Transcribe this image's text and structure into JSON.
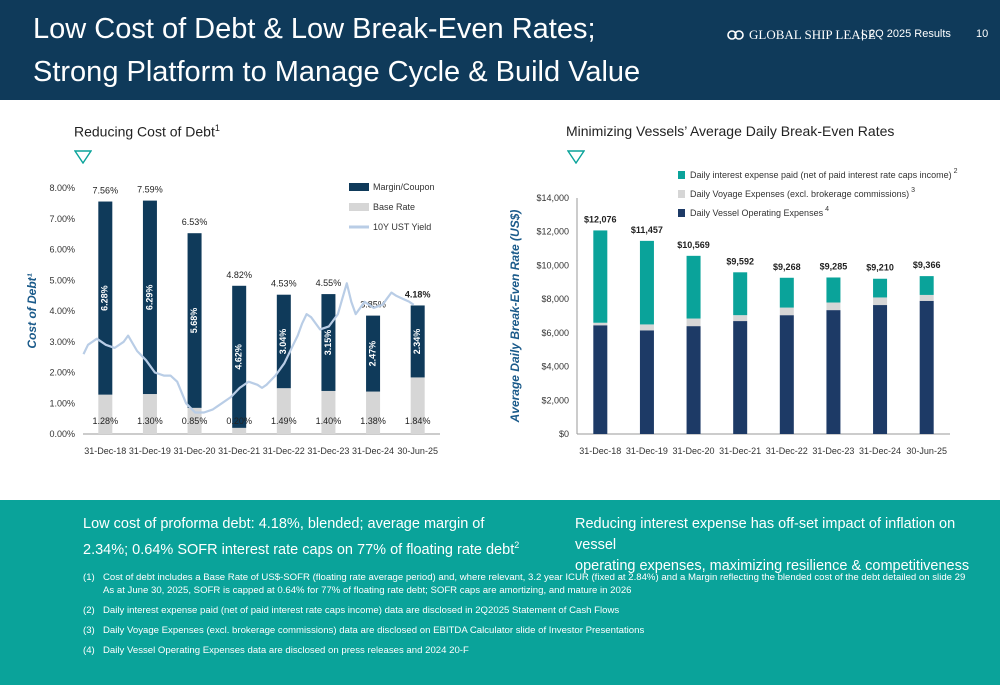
{
  "header": {
    "title_line1": "Low Cost of Debt & Low Break-Even Rates;",
    "title_line2": "Strong Platform to Manage Cycle & Build Value",
    "logo_text": "GLOBAL SHIP LEASE",
    "separator": "|",
    "results_label": "2Q 2025 Results",
    "page_number": "10",
    "colors": {
      "navy": "#0f3a5a",
      "teal": "#0aa39a"
    }
  },
  "left_panel": {
    "title": "Reducing Cost of Debt",
    "title_sup": "1",
    "marker_icon": "triangle-down-icon"
  },
  "right_panel": {
    "title": "Minimizing Vessels’ Average Daily Break-Even Rates",
    "marker_icon": "triangle-down-icon"
  },
  "chart_data": [
    {
      "type": "bar",
      "stacked": true,
      "ylabel": "Cost of Debt¹",
      "categories": [
        "31-Dec-18",
        "31-Dec-19",
        "31-Dec-20",
        "31-Dec-21",
        "31-Dec-22",
        "31-Dec-23",
        "31-Dec-24",
        "30-Jun-25"
      ],
      "ylim": [
        0,
        8
      ],
      "y_ticks": [
        "0.00%",
        "1.00%",
        "2.00%",
        "3.00%",
        "4.00%",
        "5.00%",
        "6.00%",
        "7.00%",
        "8.00%"
      ],
      "series": [
        {
          "name": "Base Rate",
          "color": "#d6d6d6",
          "values": [
            1.28,
            1.3,
            0.85,
            0.2,
            1.49,
            1.4,
            1.38,
            1.84
          ],
          "labels": [
            "1.28%",
            "1.30%",
            "0.85%",
            "0.20%",
            "1.49%",
            "1.40%",
            "1.38%",
            "1.84%"
          ]
        },
        {
          "name": "Margin/Coupon",
          "color": "#0f3a5a",
          "values": [
            6.28,
            6.29,
            5.68,
            4.62,
            3.04,
            3.15,
            2.47,
            2.34
          ],
          "labels": [
            "6.28%",
            "6.29%",
            "5.68%",
            "4.62%",
            "3.04%",
            "3.15%",
            "2.47%",
            "2.34%"
          ]
        }
      ],
      "totals": [
        7.56,
        7.59,
        6.53,
        4.82,
        4.53,
        4.55,
        3.85,
        4.18
      ],
      "total_labels": [
        "7.56%",
        "7.59%",
        "6.53%",
        "4.82%",
        "4.53%",
        "4.55%",
        "3.85%",
        "4.18%"
      ],
      "line": {
        "name": "10Y UST Yield",
        "color": "#b9cde6",
        "x": [
          0,
          0.1,
          0.3,
          0.5,
          0.7,
          0.9,
          1.0,
          1.2,
          1.4,
          1.6,
          1.8,
          1.95,
          2.1,
          2.3,
          2.5,
          2.7,
          2.9,
          3.0,
          3.1,
          3.3,
          3.5,
          3.7,
          3.9,
          4.0,
          4.1,
          4.3,
          4.5,
          4.7,
          4.8,
          4.9,
          5.0,
          5.1,
          5.3,
          5.5,
          5.7,
          5.8,
          5.9,
          6.0,
          6.1,
          6.3,
          6.5,
          6.7,
          6.8,
          6.9,
          7.0,
          7.15,
          7.3,
          7.4
        ],
        "y": [
          2.6,
          2.9,
          3.1,
          2.9,
          2.8,
          3.0,
          3.2,
          2.7,
          2.4,
          2.0,
          1.9,
          1.9,
          1.7,
          1.0,
          0.7,
          0.7,
          0.8,
          0.9,
          1.0,
          1.2,
          1.5,
          1.7,
          1.6,
          1.5,
          1.6,
          1.9,
          2.3,
          2.9,
          3.2,
          3.6,
          3.9,
          3.8,
          3.4,
          3.5,
          3.9,
          4.4,
          4.9,
          4.3,
          3.9,
          4.3,
          4.1,
          4.2,
          4.4,
          4.6,
          4.5,
          4.4,
          4.3,
          4.2
        ]
      },
      "legend": [
        "Margin/Coupon",
        "Base Rate",
        "10Y UST Yield"
      ],
      "legend_position": "top-right"
    },
    {
      "type": "bar",
      "stacked": true,
      "ylabel": "Average Daily Break-Even Rate (US$)",
      "categories": [
        "31-Dec-18",
        "31-Dec-19",
        "31-Dec-20",
        "31-Dec-21",
        "31-Dec-22",
        "31-Dec-23",
        "31-Dec-24",
        "30-Jun-25"
      ],
      "ylim": [
        0,
        14000
      ],
      "y_ticks": [
        "$0",
        "$2,000",
        "$4,000",
        "$6,000",
        "$8,000",
        "$10,000",
        "$12,000",
        "$14,000"
      ],
      "series": [
        {
          "name": "Daily Vessel Operating Expenses",
          "sup": "4",
          "color": "#1d3a66",
          "values": [
            6450,
            6150,
            6400,
            6700,
            7050,
            7350,
            7650,
            7900
          ]
        },
        {
          "name": "Daily Voyage Expenses (excl. brokerage commissions)",
          "sup": "3",
          "color": "#d6d6d6",
          "values": [
            150,
            350,
            450,
            350,
            450,
            450,
            450,
            350
          ]
        },
        {
          "name": "Daily interest expense paid (net of paid interest rate caps income)",
          "sup": "2",
          "color": "#0aa39a",
          "values": [
            5476,
            4957,
            3719,
            2542,
            1768,
            1485,
            1110,
            1116
          ]
        }
      ],
      "total_labels": [
        "$12,076",
        "$11,457",
        "$10,569",
        "$9,592",
        "$9,268",
        "$9,285",
        "$9,210",
        "$9,366"
      ],
      "legend": [
        "Daily interest expense paid (net of paid interest rate caps income)",
        "Daily Voyage Expenses (excl. brokerage commissions)",
        "Daily Vessel Operating Expenses"
      ],
      "legend_position": "top"
    }
  ],
  "takeaways": {
    "left_line1": "Low cost of proforma debt: 4.18%, blended; average margin of",
    "left_line2": "2.34%; 0.64% SOFR interest rate caps on 77% of floating rate debt",
    "left_sup": "2",
    "right_line1": "Reducing interest expense has off-set impact of inflation on vessel",
    "right_line2": "operating expenses, maximizing resilience & competitiveness"
  },
  "footnotes": [
    {
      "num": "(1)",
      "text": "Cost of debt includes a Base Rate of US$-SOFR (floating rate average period) and, where relevant, 3.2 year ICUR (fixed at 2.84%) and a Margin reflecting the blended cost of the debt detailed on slide 29 As at June 30, 2025, SOFR is capped at 0.64% for 77% of floating rate debt; SOFR caps are amortizing, and mature in 2026"
    },
    {
      "num": "(2)",
      "text": "Daily interest expense paid (net of paid interest rate caps income) data are disclosed in 2Q2025 Statement of Cash Flows"
    },
    {
      "num": "(3)",
      "text": "Daily Voyage Expenses (excl. brokerage commissions) data are disclosed on EBITDA Calculator slide of Investor Presentations"
    },
    {
      "num": "(4)",
      "text": "Daily Vessel Operating Expenses data are disclosed on press releases and 2024 20-F"
    }
  ]
}
